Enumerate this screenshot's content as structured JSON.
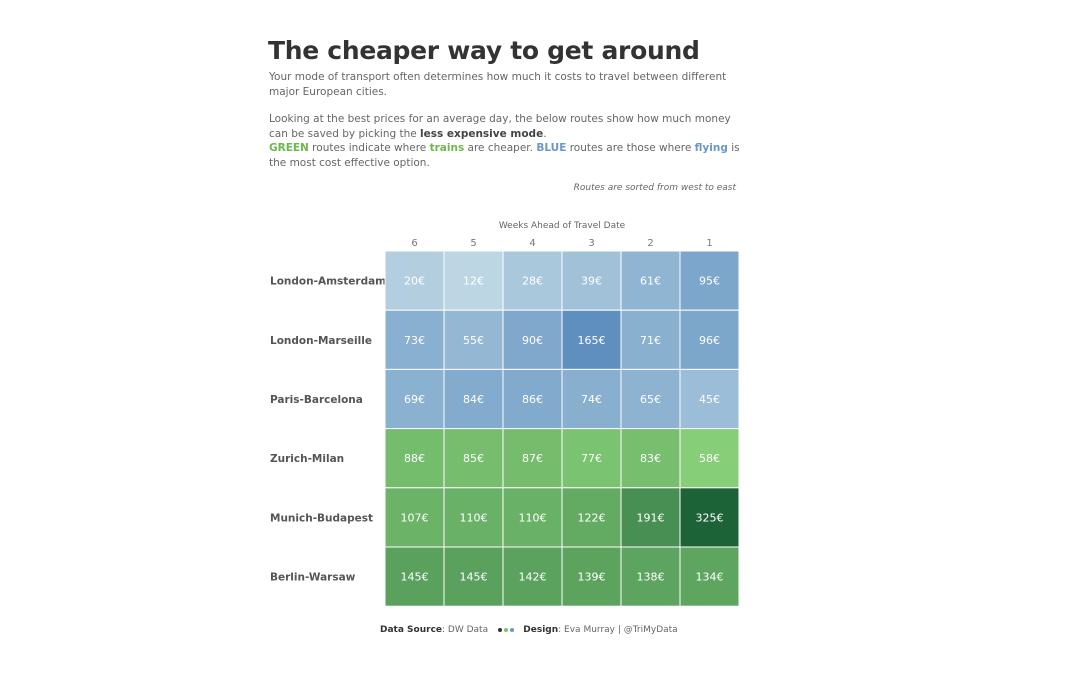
{
  "header": {
    "title": "The cheaper way to get around",
    "intro": "Your mode of transport often determines how much it costs to travel between different major European cities.",
    "para2_prefix": "Looking at the best prices for an average day, the below routes show how much money can be saved by picking the ",
    "para2_bold": "less expensive mode",
    "para2_suffix": ".",
    "green_word": "GREEN",
    "green_mid": " routes indicate where ",
    "trains_word": "trains",
    "mid_text": " are cheaper. ",
    "blue_word": "BLUE",
    "blue_mid": " routes are those where ",
    "flying_word": "flying",
    "para3_suffix": " is the most cost effective option.",
    "sorted_note": "Routes are sorted from west to east"
  },
  "footer": {
    "source_label": "Data Source",
    "source_value": ": DW Data",
    "design_label": "Design",
    "design_value": ": Eva Murray | @TriMyData"
  },
  "chart_data": {
    "type": "heatmap",
    "title": "Weeks Ahead of Travel Date",
    "x_labels": [
      "6",
      "5",
      "4",
      "3",
      "2",
      "1"
    ],
    "rows": [
      {
        "route": "London-Amsterdam",
        "mode": "flying",
        "values": [
          20,
          12,
          28,
          39,
          61,
          95
        ]
      },
      {
        "route": "London-Marseille",
        "mode": "flying",
        "values": [
          73,
          55,
          90,
          165,
          71,
          96
        ]
      },
      {
        "route": "Paris-Barcelona",
        "mode": "flying",
        "values": [
          69,
          84,
          86,
          74,
          65,
          45
        ]
      },
      {
        "route": "Zurich-Milan",
        "mode": "trains",
        "values": [
          88,
          85,
          87,
          77,
          83,
          58
        ]
      },
      {
        "route": "Munich-Budapest",
        "mode": "trains",
        "values": [
          107,
          110,
          110,
          122,
          191,
          325
        ]
      },
      {
        "route": "Berlin-Warsaw",
        "mode": "trains",
        "values": [
          145,
          145,
          142,
          139,
          138,
          134
        ]
      }
    ],
    "unit": "€",
    "colors": {
      "blue_low": "#bcd6e3",
      "blue_high": "#5e8fbf",
      "green_low": "#86cf78",
      "green_high": "#1c6338",
      "green_accent": "#6cb84e",
      "blue_accent": "#6b98c4",
      "dot_dark": "#333333",
      "dot_green": "#7cc46a",
      "dot_blue": "#6b98c4"
    }
  }
}
